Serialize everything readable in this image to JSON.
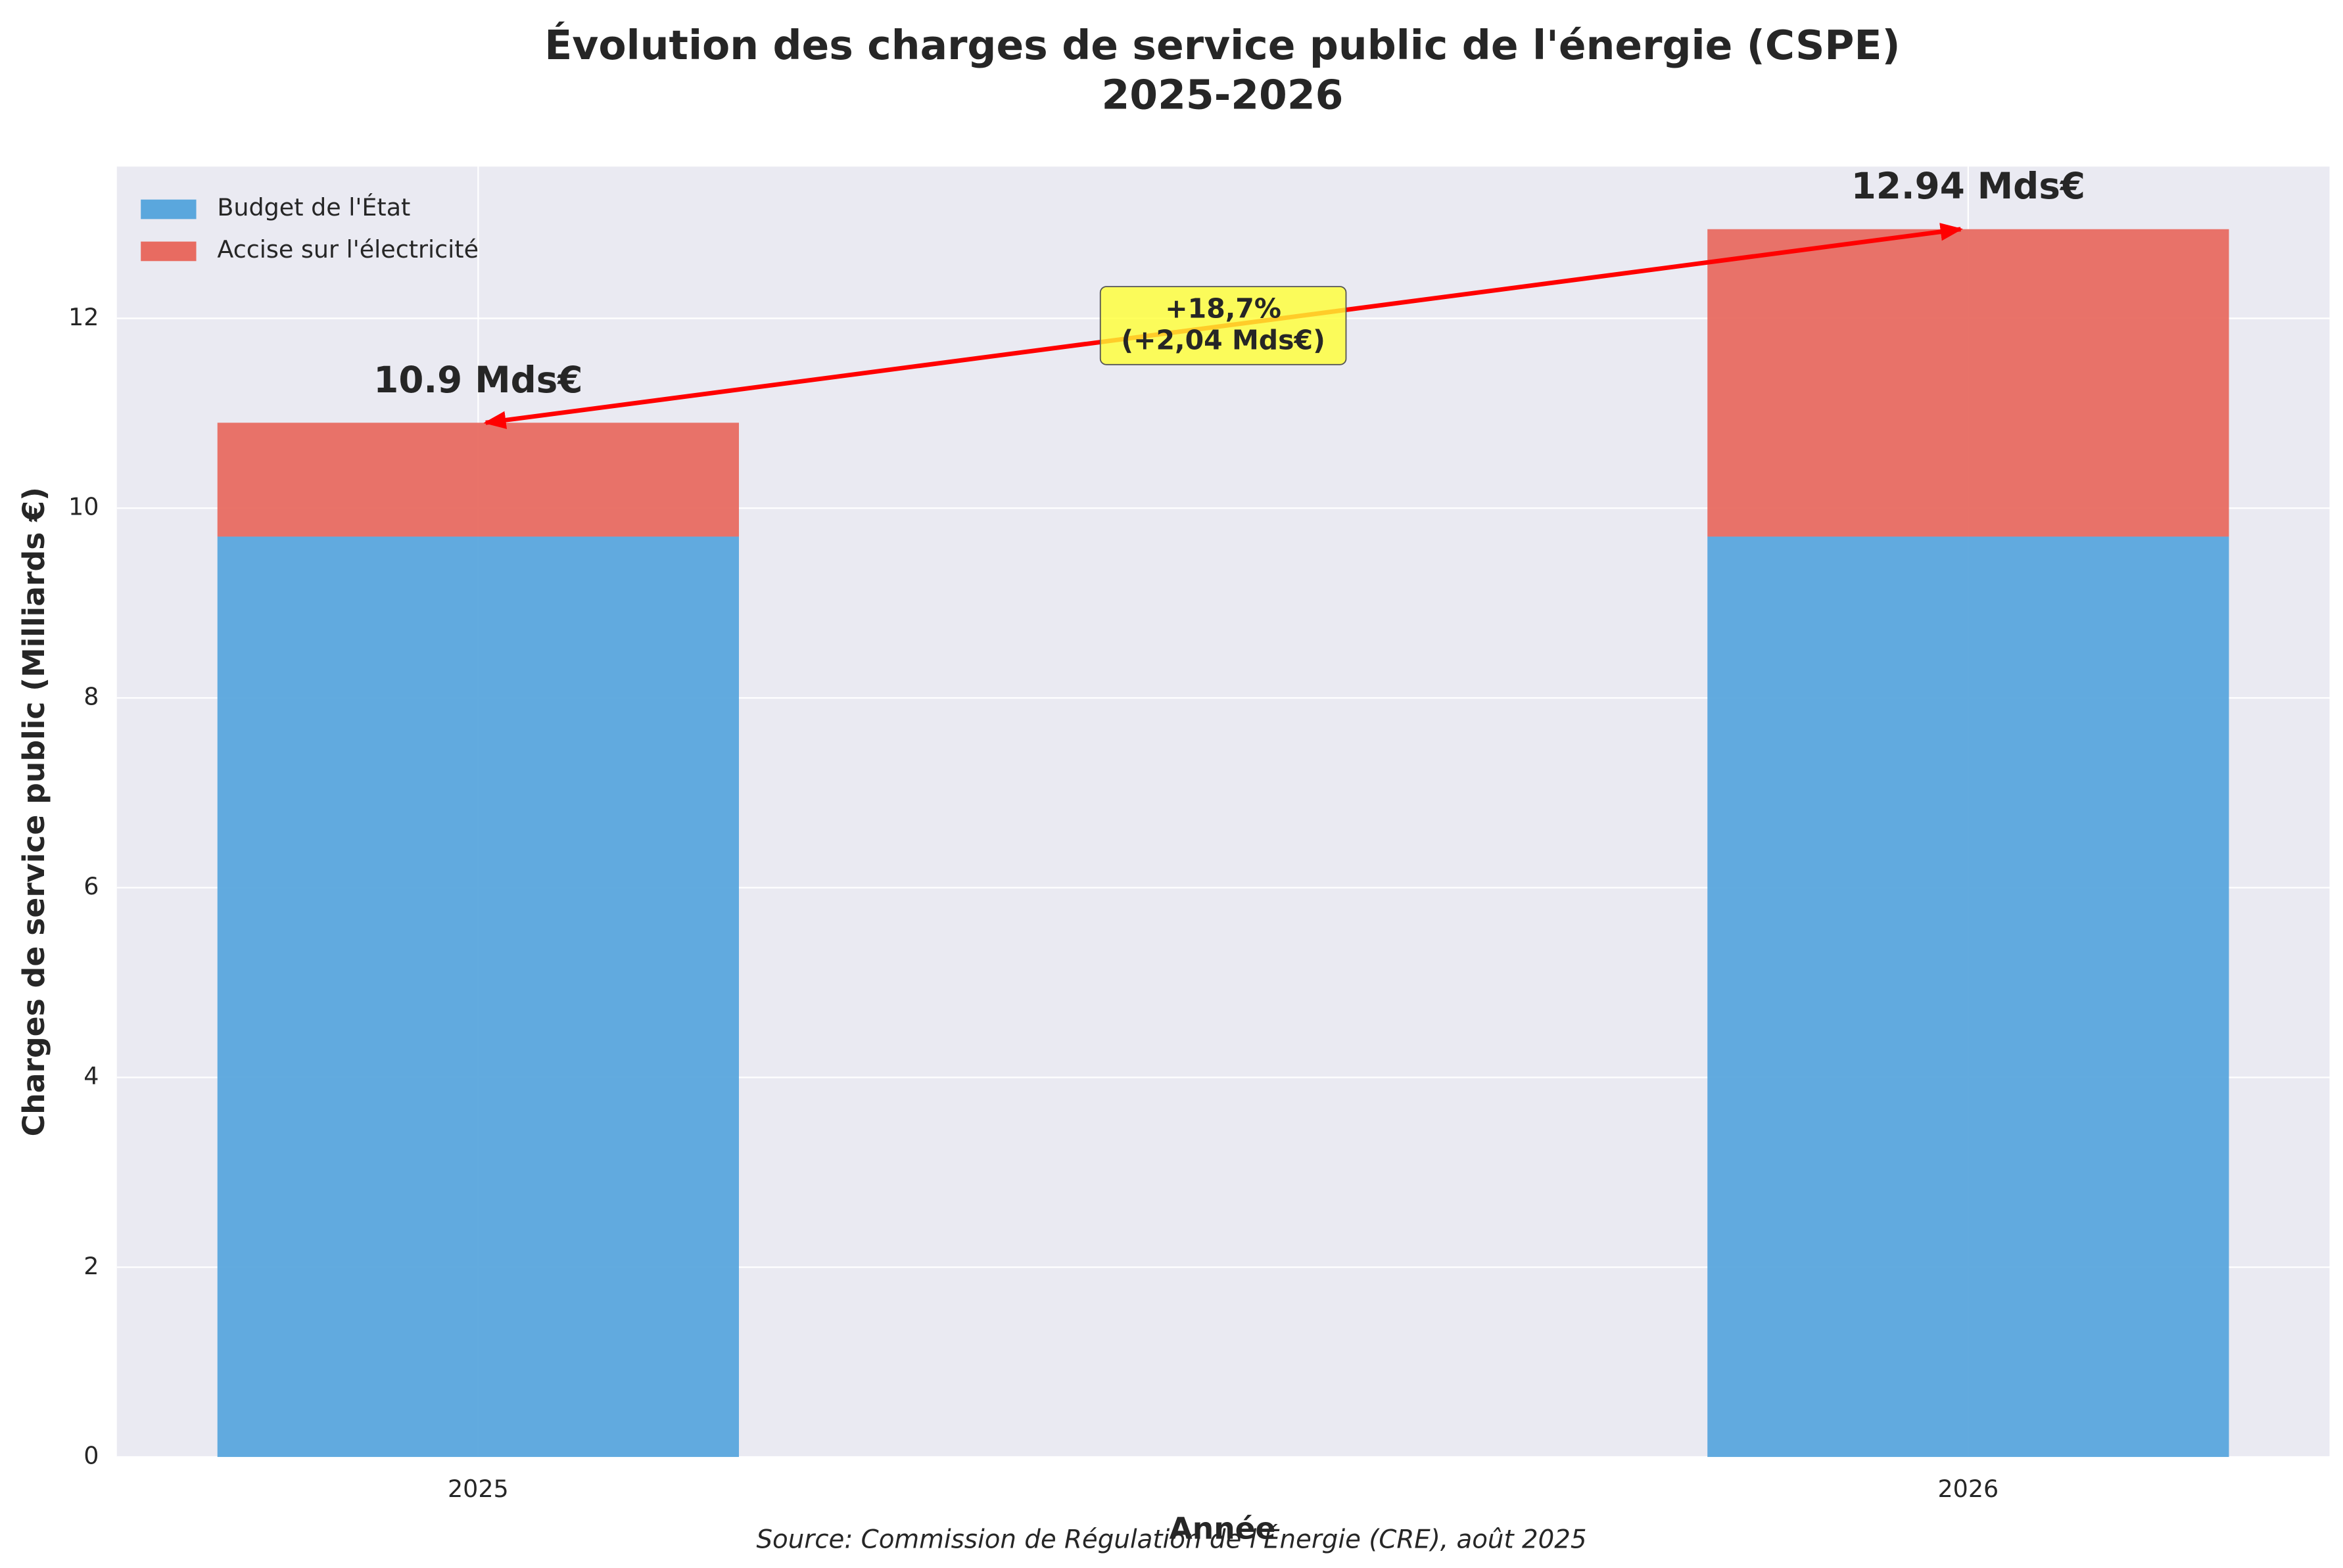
{
  "chart_data": {
    "type": "stacked_bar",
    "title": "Évolution des charges de service public de l'énergie (CSPE)",
    "subtitle": "2025-2026",
    "xlabel": "Année",
    "ylabel": "Charges de service public (Milliards €)",
    "categories": [
      "2025",
      "2026"
    ],
    "series": [
      {
        "name": "Budget de l'État",
        "color": "#5aa7dd",
        "values": [
          9.7,
          9.7
        ]
      },
      {
        "name": "Accise sur l'électricité",
        "color": "#e86b61",
        "values": [
          1.2,
          3.24
        ]
      }
    ],
    "totals": {
      "values": [
        10.9,
        12.94
      ],
      "value_labels": [
        "10.9 Mds€",
        "12.94 Mds€"
      ]
    },
    "annotation": [
      "+18,7%",
      "(+2,04 Mds€)"
    ],
    "source": "Source: Commission de Régulation de l'Énergie (CRE), août 2025",
    "ylim": [
      0,
      13.6
    ],
    "yticks": [
      0,
      2,
      4,
      6,
      8,
      10,
      12
    ],
    "grid": true,
    "legend": "upper left"
  }
}
